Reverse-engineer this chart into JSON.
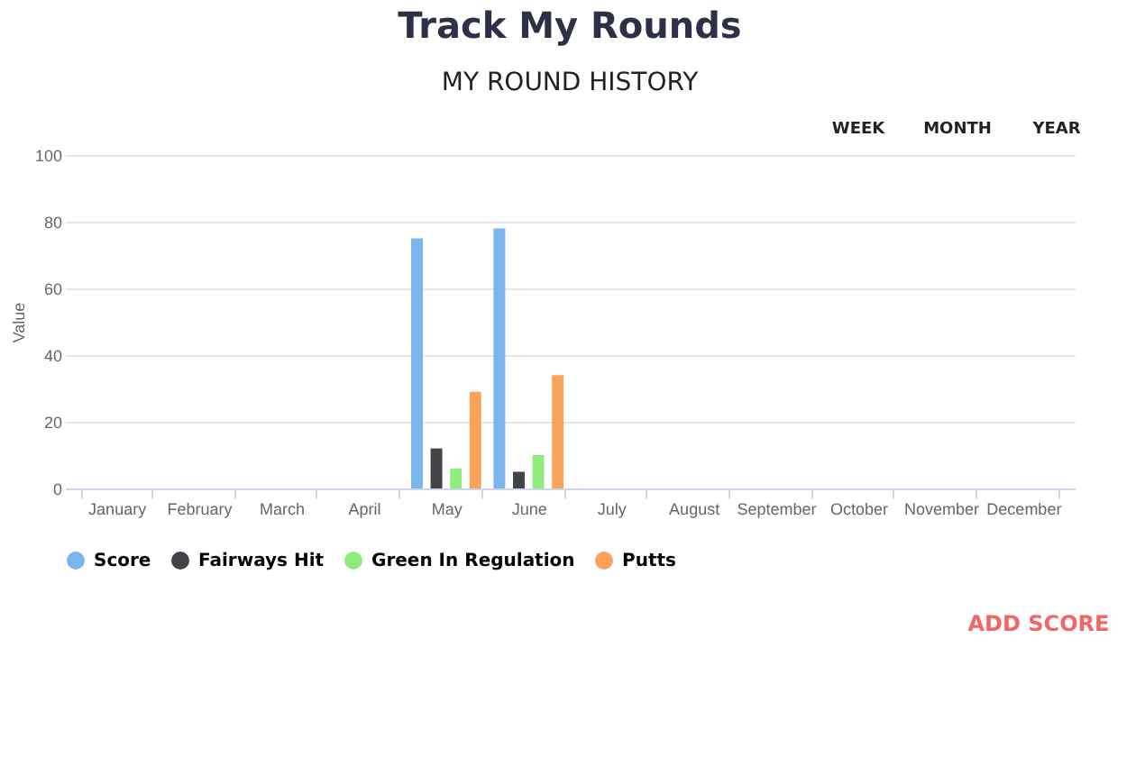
{
  "chart_data": {
    "type": "bar",
    "title": "Track My Rounds",
    "subtitle": "MY ROUND HISTORY",
    "ylabel": "Value",
    "categories": [
      "January",
      "February",
      "March",
      "April",
      "May",
      "June",
      "July",
      "August",
      "September",
      "October",
      "November",
      "December"
    ],
    "series": [
      {
        "name": "Score",
        "color": "#7cb5ec",
        "values": [
          null,
          null,
          null,
          null,
          75,
          78,
          null,
          null,
          null,
          null,
          null,
          null
        ]
      },
      {
        "name": "Fairways Hit",
        "color": "#434348",
        "values": [
          null,
          null,
          null,
          null,
          12,
          5,
          null,
          null,
          null,
          null,
          null,
          null
        ]
      },
      {
        "name": "Green In Regulation",
        "color": "#90ed7d",
        "values": [
          null,
          null,
          null,
          null,
          6,
          10,
          null,
          null,
          null,
          null,
          null,
          null
        ]
      },
      {
        "name": "Putts",
        "color": "#f7a35c",
        "values": [
          null,
          null,
          null,
          null,
          29,
          34,
          null,
          null,
          null,
          null,
          null,
          null
        ]
      }
    ],
    "ylim": [
      0,
      100
    ],
    "yticks": [
      0,
      20,
      40,
      60,
      80,
      100
    ],
    "grid": "y",
    "legend": "bottom",
    "marker": "circle",
    "annotations": [
      "WEEK",
      "MONTH",
      "YEAR",
      "ADD SCORE"
    ]
  }
}
